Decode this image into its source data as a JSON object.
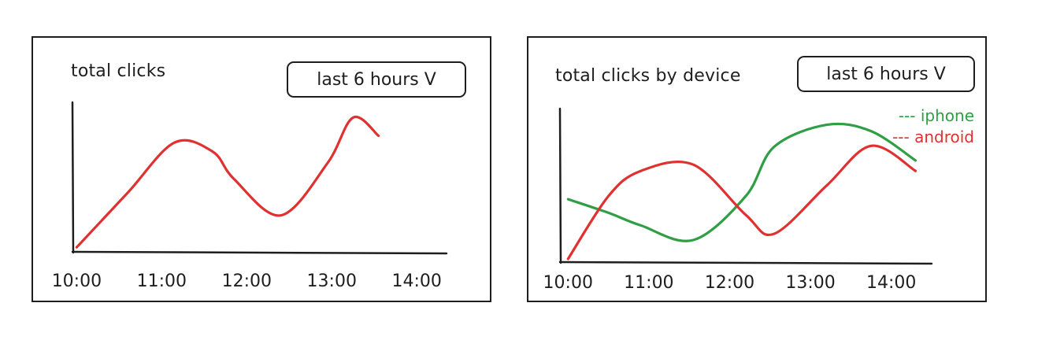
{
  "colors": {
    "red": "#e03131",
    "green": "#2f9e44",
    "ink": "#1e1e1e"
  },
  "chart_data": [
    {
      "type": "line",
      "title": "total clicks",
      "filter_label": "last 6 hours V",
      "categories": [
        "10:00",
        "11:00",
        "12:00",
        "13:00",
        "14:00"
      ],
      "x": [
        0.0,
        0.6,
        1.15,
        1.6,
        1.85,
        2.4,
        2.95,
        3.25,
        3.55
      ],
      "series": [
        {
          "color": "#e03131",
          "values": [
            4,
            52,
            96,
            88,
            64,
            32,
            78,
            118,
            102
          ]
        }
      ],
      "ylim": [
        0,
        130
      ],
      "xlim": [
        -0.05,
        4.35
      ],
      "grid": false
    },
    {
      "type": "line",
      "title": "total clicks by device",
      "filter_label": "last 6 hours V",
      "categories": [
        "10:00",
        "11:00",
        "12:00",
        "13:00",
        "14:00"
      ],
      "x": [
        0.0,
        0.5,
        0.9,
        1.55,
        2.2,
        2.55,
        3.2,
        3.75,
        4.3
      ],
      "series": [
        {
          "name": "iphone",
          "color": "#2f9e44",
          "values": [
            55,
            42,
            30,
            16,
            58,
            105,
            126,
            120,
            92
          ]
        },
        {
          "name": "android",
          "color": "#e03131",
          "values": [
            -2,
            58,
            82,
            88,
            40,
            22,
            68,
            106,
            82
          ]
        }
      ],
      "legend": [
        "--- iphone",
        "--- android"
      ],
      "legend_position": "top-right",
      "ylim": [
        -5,
        140
      ],
      "xlim": [
        -0.1,
        4.5
      ],
      "grid": false
    }
  ]
}
